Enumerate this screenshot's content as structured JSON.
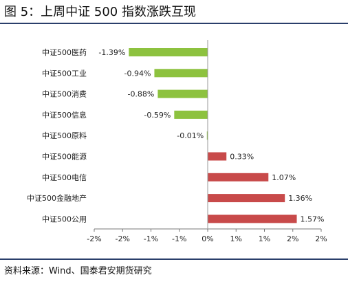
{
  "figure": {
    "title": "图 5：上周中证 500 指数涨跌互现",
    "source": "资料来源：Wind、国泰君安期货研究"
  },
  "chart_data": {
    "type": "bar",
    "orientation": "horizontal",
    "categories": [
      "中证500医药",
      "中证500工业",
      "中证500消费",
      "中证500信息",
      "中证500原料",
      "中证500能源",
      "中证500电信",
      "中证500金融地产",
      "中证500公用"
    ],
    "values": [
      -1.39,
      -0.94,
      -0.88,
      -0.59,
      -0.01,
      0.33,
      1.07,
      1.36,
      1.57
    ],
    "value_labels": [
      "-1.39%",
      "-0.94%",
      "-0.88%",
      "-0.59%",
      "-0.01%",
      "0.33%",
      "1.07%",
      "1.36%",
      "1.57%"
    ],
    "xlim": [
      -2,
      2
    ],
    "xticks": [
      -2,
      -1.5,
      -1,
      -0.5,
      0,
      0.5,
      1,
      1.5,
      2
    ],
    "xtick_labels": [
      "-2%",
      "-2%",
      "-1%",
      "-1%",
      "0%",
      "1%",
      "1%",
      "2%",
      "2%"
    ],
    "grid": false,
    "colors": {
      "negative": "#8dc23f",
      "positive": "#c84a4a"
    }
  }
}
